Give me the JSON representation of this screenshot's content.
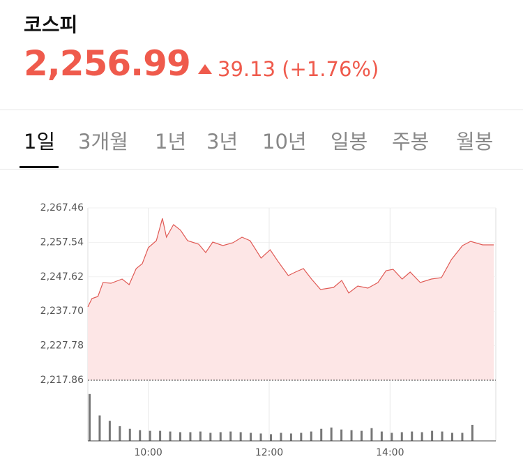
{
  "header": {
    "name": "코스피",
    "price": "2,256.99",
    "change": "39.13 (+1.76%)"
  },
  "tabs": [
    "1일",
    "3개월",
    "1년",
    "3년",
    "10년",
    "일봉",
    "주봉",
    "월봉"
  ],
  "chart_data": {
    "type": "area",
    "xlim": [
      "09:00",
      "15:45"
    ],
    "xticks": [
      "10:00",
      "12:00",
      "14:00"
    ],
    "ylim": [
      2217.86,
      2267.46
    ],
    "yticks": [
      {
        "value": 2217.86,
        "label": "2,217.86"
      },
      {
        "value": 2227.78,
        "label": "2,227.78"
      },
      {
        "value": 2237.7,
        "label": "2,237.70"
      },
      {
        "value": 2247.62,
        "label": "2,247.62"
      },
      {
        "value": 2257.54,
        "label": "2,257.54"
      },
      {
        "value": 2267.46,
        "label": "2,267.46"
      }
    ],
    "baseline": 2217.86,
    "color": "#e05a55",
    "x": [
      "09:00",
      "09:04",
      "09:10",
      "09:15",
      "09:23",
      "09:34",
      "09:41",
      "09:48",
      "09:54",
      "10:00",
      "10:08",
      "10:14",
      "10:18",
      "10:25",
      "10:32",
      "10:39",
      "10:50",
      "10:57",
      "11:04",
      "11:14",
      "11:24",
      "11:33",
      "11:41",
      "11:52",
      "12:01",
      "12:09",
      "12:19",
      "12:26",
      "12:34",
      "12:42",
      "12:51",
      "13:04",
      "13:12",
      "13:19",
      "13:28",
      "13:38",
      "13:48",
      "13:56",
      "14:03",
      "14:12",
      "14:20",
      "14:30",
      "14:41",
      "14:51",
      "15:01",
      "15:12",
      "15:20",
      "15:32",
      "15:43"
    ],
    "series": [
      {
        "values": [
          2238.94,
          2241.36,
          2241.96,
          2245.97,
          2245.78,
          2246.98,
          2245.37,
          2249.99,
          2251.4,
          2256.01,
          2258.02,
          2264.45,
          2259.03,
          2262.64,
          2261.03,
          2258.02,
          2257.02,
          2254.61,
          2257.62,
          2256.62,
          2257.42,
          2259.03,
          2258.02,
          2253.0,
          2255.41,
          2251.95,
          2247.98,
          2248.99,
          2249.99,
          2246.98,
          2243.97,
          2244.57,
          2246.58,
          2242.96,
          2244.97,
          2244.37,
          2245.97,
          2249.39,
          2249.79,
          2246.98,
          2248.99,
          2245.97,
          2246.98,
          2247.38,
          2252.6,
          2256.62,
          2257.82,
          2256.82,
          2256.82
        ]
      }
    ],
    "volume": {
      "vlim": [
        0,
        75
      ],
      "x": [
        "09:00",
        "09:10",
        "09:20",
        "09:30",
        "09:40",
        "09:50",
        "10:00",
        "10:10",
        "10:20",
        "10:30",
        "10:40",
        "10:50",
        "11:00",
        "11:10",
        "11:20",
        "11:30",
        "11:40",
        "11:50",
        "12:00",
        "12:10",
        "12:20",
        "12:30",
        "12:40",
        "12:50",
        "13:00",
        "13:10",
        "13:20",
        "13:30",
        "13:40",
        "13:50",
        "14:00",
        "14:10",
        "14:20",
        "14:30",
        "14:40",
        "14:50",
        "15:00",
        "15:10",
        "15:20"
      ],
      "values": [
        70,
        38,
        30,
        22,
        18,
        16,
        15,
        15,
        14,
        13,
        13,
        14,
        12,
        13,
        14,
        13,
        12,
        11,
        10,
        12,
        11,
        12,
        14,
        18,
        20,
        17,
        16,
        15,
        19,
        14,
        12,
        13,
        14,
        13,
        15,
        14,
        12,
        12,
        24
      ]
    }
  }
}
